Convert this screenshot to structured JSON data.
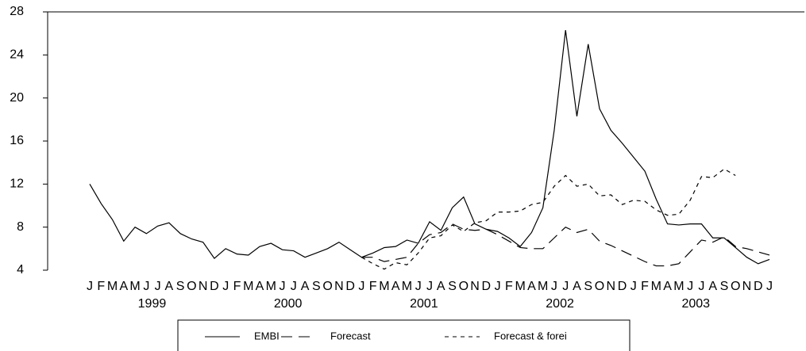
{
  "chart_data": {
    "type": "line",
    "categories": [
      "J",
      "F",
      "M",
      "A",
      "M",
      "J",
      "J",
      "A",
      "S",
      "O",
      "N",
      "D",
      "J",
      "F",
      "M",
      "A",
      "M",
      "J",
      "J",
      "A",
      "S",
      "O",
      "N",
      "D",
      "J",
      "F",
      "M",
      "A",
      "M",
      "J",
      "J",
      "A",
      "S",
      "O",
      "N",
      "D",
      "J",
      "F",
      "M",
      "A",
      "M",
      "J",
      "J",
      "A",
      "S",
      "O",
      "N",
      "D",
      "J",
      "F",
      "M",
      "A",
      "M",
      "J",
      "J",
      "A",
      "S",
      "O",
      "N",
      "D",
      "J"
    ],
    "year_labels": [
      "1999",
      "2000",
      "2001",
      "2002",
      "2003"
    ],
    "series": [
      {
        "name": "EMBI",
        "color": "#000000",
        "dash": "solid",
        "values": [
          12.0,
          10.2,
          8.7,
          6.7,
          8.0,
          7.4,
          8.1,
          8.4,
          7.4,
          6.9,
          6.6,
          5.1,
          6.0,
          5.5,
          5.4,
          6.2,
          6.5,
          5.9,
          5.8,
          5.2,
          5.6,
          6.0,
          6.6,
          5.9,
          5.2,
          5.6,
          6.1,
          6.2,
          6.8,
          6.5,
          8.5,
          7.7,
          9.8,
          10.8,
          8.3,
          7.8,
          7.6,
          7.0,
          6.2,
          7.5,
          9.8,
          17.0,
          26.3,
          18.3,
          25.0,
          19.0,
          17.0,
          15.8,
          14.5,
          13.2,
          10.6,
          8.3,
          8.2,
          8.3,
          8.3,
          7.0,
          7.0,
          6.1,
          5.2,
          4.6,
          5.0
        ]
      },
      {
        "name": "Forecast",
        "color": "#000000",
        "dash": "long",
        "values": [
          null,
          null,
          null,
          null,
          null,
          null,
          null,
          null,
          null,
          null,
          null,
          null,
          null,
          null,
          null,
          null,
          null,
          null,
          null,
          null,
          null,
          null,
          null,
          null,
          5.2,
          5.2,
          4.8,
          5.0,
          5.2,
          6.5,
          7.3,
          7.5,
          8.3,
          7.8,
          7.7,
          7.8,
          7.3,
          6.7,
          6.1,
          6.0,
          6.0,
          7.0,
          8.0,
          7.5,
          7.8,
          6.7,
          6.3,
          5.8,
          5.3,
          4.8,
          4.4,
          4.4,
          4.6,
          5.7,
          6.8,
          6.6,
          7.1,
          6.2,
          6.0,
          5.7,
          5.4
        ]
      },
      {
        "name": "Forecast & forei",
        "color": "#000000",
        "dash": "short",
        "values": [
          null,
          null,
          null,
          null,
          null,
          null,
          null,
          null,
          null,
          null,
          null,
          null,
          null,
          null,
          null,
          null,
          null,
          null,
          null,
          null,
          null,
          null,
          null,
          null,
          5.2,
          4.6,
          4.1,
          4.7,
          4.5,
          5.6,
          7.0,
          7.2,
          8.2,
          7.6,
          8.4,
          8.6,
          9.4,
          9.4,
          9.5,
          10.1,
          10.3,
          11.8,
          12.8,
          11.8,
          12.0,
          10.9,
          11.0,
          10.1,
          10.5,
          10.4,
          9.6,
          9.1,
          9.2,
          10.5,
          12.7,
          12.6,
          13.4,
          12.8,
          null,
          null,
          null
        ]
      }
    ],
    "ylim": [
      4,
      28
    ],
    "yticks": [
      4,
      8,
      12,
      16,
      20,
      24,
      28
    ]
  }
}
